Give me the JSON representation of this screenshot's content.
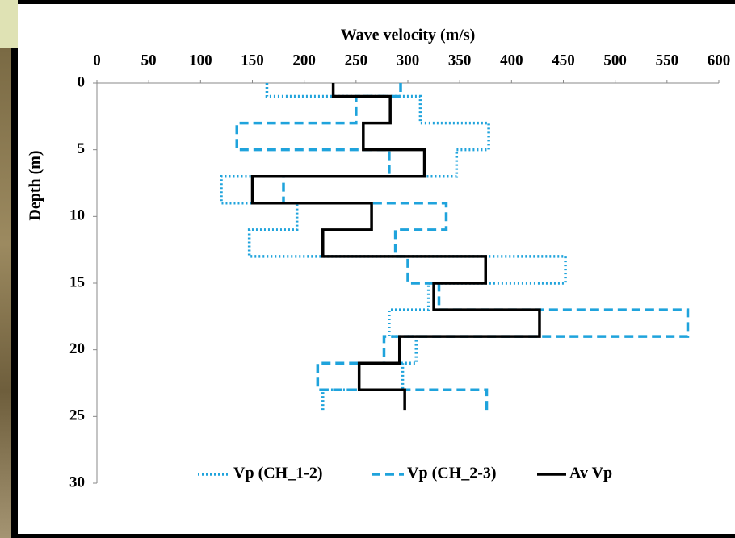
{
  "chart_data": {
    "type": "line",
    "x_title": "Wave velocity (m/s)",
    "y_title": "Depth (m)",
    "xlim": [
      0,
      600
    ],
    "xticks": [
      0,
      50,
      100,
      150,
      200,
      250,
      300,
      350,
      400,
      450,
      500,
      550,
      600
    ],
    "ylim": [
      0,
      30
    ],
    "yticks": [
      0,
      5,
      10,
      15,
      20,
      25,
      30
    ],
    "y_reversed": true,
    "x_axis_position": "top",
    "legend": "bottom",
    "series": [
      {
        "name": "Vp (CH_1-2)",
        "color": "#1fa3dc",
        "dash": "dotted",
        "values": [
          164,
          164,
          312,
          312,
          378,
          378,
          347,
          347,
          120,
          120,
          193,
          193,
          147,
          147,
          452,
          452,
          320,
          320,
          282,
          282,
          308,
          308,
          295,
          295,
          218,
          218
        ],
        "depth": [
          0,
          1,
          1,
          3,
          3,
          5,
          5,
          7,
          7,
          9,
          9,
          11,
          11,
          13,
          13,
          15,
          15,
          17,
          17,
          19,
          19,
          21,
          21,
          23,
          23,
          24.5
        ]
      },
      {
        "name": "Vp (CH_2-3)",
        "color": "#1fa3dc",
        "dash": "dashed",
        "values": [
          293,
          293,
          250,
          250,
          135,
          135,
          282,
          282,
          180,
          180,
          337,
          337,
          288,
          288,
          300,
          300,
          330,
          330,
          570,
          570,
          277,
          277,
          213,
          213,
          376,
          376
        ],
        "depth": [
          0,
          1,
          1,
          3,
          3,
          5,
          5,
          7,
          7,
          9,
          9,
          11,
          11,
          13,
          13,
          15,
          15,
          17,
          17,
          19,
          19,
          21,
          21,
          23,
          23,
          24.5
        ]
      },
      {
        "name": "Av Vp",
        "color": "#000000",
        "dash": "solid",
        "values": [
          228,
          228,
          283,
          283,
          257,
          257,
          316,
          316,
          150,
          150,
          265,
          265,
          218,
          218,
          375,
          375,
          325,
          325,
          427,
          427,
          292,
          292,
          253,
          253,
          297,
          297
        ],
        "depth": [
          0,
          1,
          1,
          3,
          3,
          5,
          5,
          7,
          7,
          9,
          9,
          11,
          11,
          13,
          13,
          15,
          15,
          17,
          17,
          19,
          19,
          21,
          21,
          23,
          23,
          24.5
        ]
      }
    ]
  }
}
